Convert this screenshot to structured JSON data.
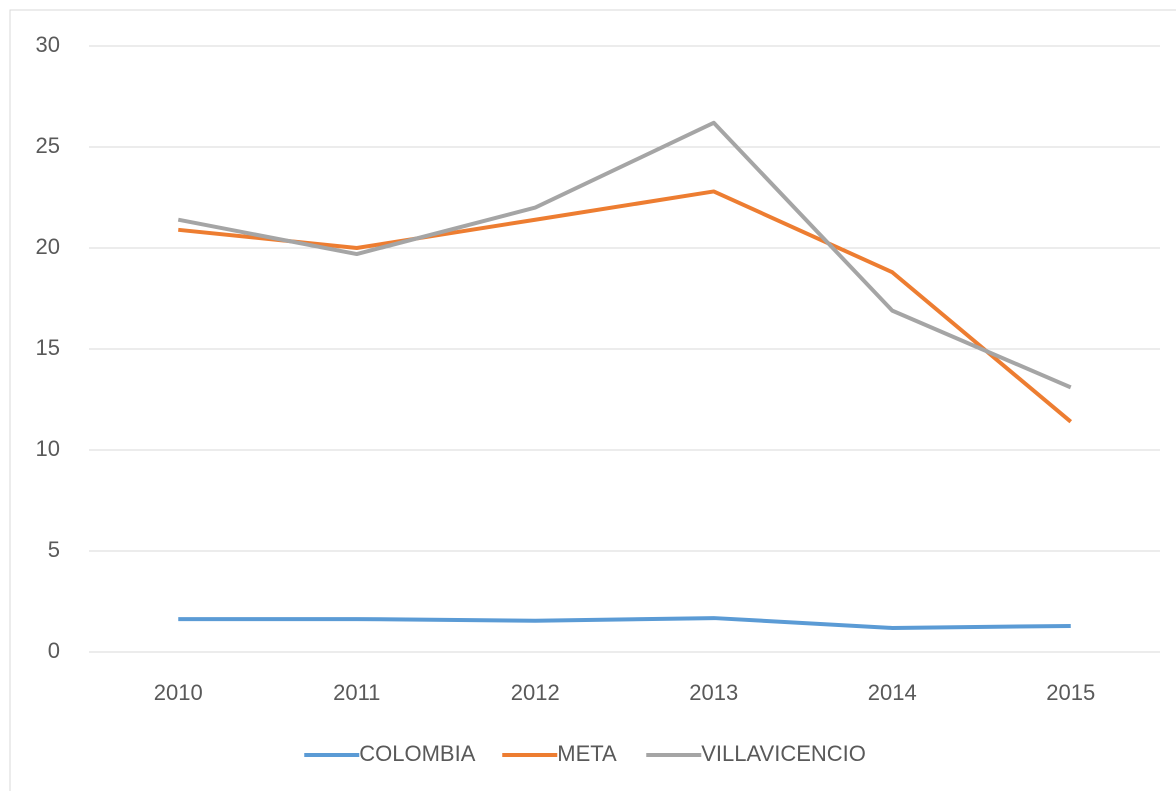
{
  "chart_data": {
    "type": "line",
    "categories": [
      "2010",
      "2011",
      "2012",
      "2013",
      "2014",
      "2015"
    ],
    "series": [
      {
        "name": "COLOMBIA",
        "color": "#5b9bd5",
        "values": [
          1.63,
          1.63,
          1.55,
          1.68,
          1.19,
          1.29
        ]
      },
      {
        "name": "META",
        "color": "#ed7d31",
        "values": [
          20.9,
          20.0,
          21.4,
          22.8,
          18.8,
          11.4
        ]
      },
      {
        "name": "VILLAVICENCIO",
        "color": "#a5a5a5",
        "values": [
          21.4,
          19.7,
          22.0,
          26.2,
          16.9,
          13.1
        ]
      }
    ],
    "ylim": [
      0,
      30
    ],
    "yticks": [
      0,
      5,
      10,
      15,
      20,
      25,
      30
    ],
    "grid": true,
    "legend": "bottom"
  }
}
